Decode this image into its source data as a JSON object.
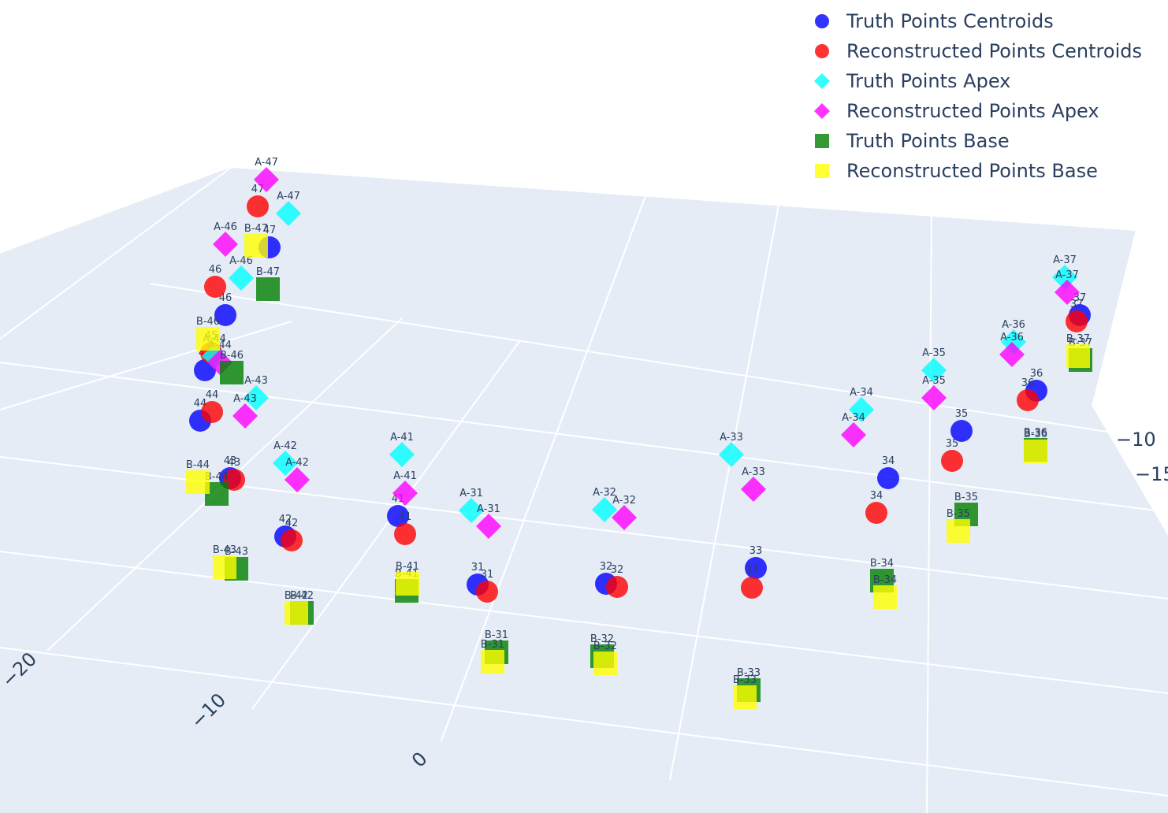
{
  "chart_data": {
    "type": "scatter3d",
    "axes": {
      "x_tick_labels": [
        "−20",
        "−10",
        "0"
      ],
      "y_tick_labels": [
        "−10",
        "−15"
      ]
    },
    "legend_position": "top-right",
    "series": [
      {
        "name": "Truth Points Centroids",
        "marker": "circle",
        "color": "#0000ff",
        "labels": [
          "47",
          "46",
          "45",
          "44",
          "43",
          "42",
          "41",
          "31",
          "32",
          "33",
          "34",
          "35",
          "36",
          "37"
        ]
      },
      {
        "name": "Reconstructed Points Centroids",
        "marker": "circle",
        "color": "#ff0000",
        "labels": [
          "47",
          "46",
          "45",
          "44",
          "43",
          "42",
          "41",
          "31",
          "32",
          "33",
          "34",
          "35",
          "36",
          "37"
        ]
      },
      {
        "name": "Truth Points Apex",
        "marker": "diamond",
        "color": "#00ffff",
        "labels": [
          "A-47",
          "A-46",
          "A-44",
          "A-43",
          "A-42",
          "A-41",
          "A-31",
          "A-32",
          "A-33",
          "A-34",
          "A-35",
          "A-36",
          "A-37"
        ]
      },
      {
        "name": "Reconstructed Points Apex",
        "marker": "diamond",
        "color": "#ff00ff",
        "labels": [
          "A-47",
          "A-46",
          "A-44",
          "A-43",
          "A-42",
          "A-41",
          "A-31",
          "A-32",
          "A-33",
          "A-34",
          "A-35",
          "A-36",
          "A-37"
        ]
      },
      {
        "name": "Truth Points Base",
        "marker": "square",
        "color": "#008000",
        "labels": [
          "B-47",
          "B-46",
          "B-44",
          "B-43",
          "B-42",
          "B-41",
          "B-31",
          "B-32",
          "B-33",
          "B-34",
          "B-35",
          "B-36",
          "B-37"
        ]
      },
      {
        "name": "Reconstructed Points Base",
        "marker": "square",
        "color": "#ffff00",
        "labels": [
          "B-47",
          "B-46",
          "B-44",
          "B-43",
          "B-42",
          "B-41",
          "B-31",
          "B-32",
          "B-33",
          "B-34",
          "B-35",
          "B-36",
          "B-37"
        ]
      }
    ]
  }
}
